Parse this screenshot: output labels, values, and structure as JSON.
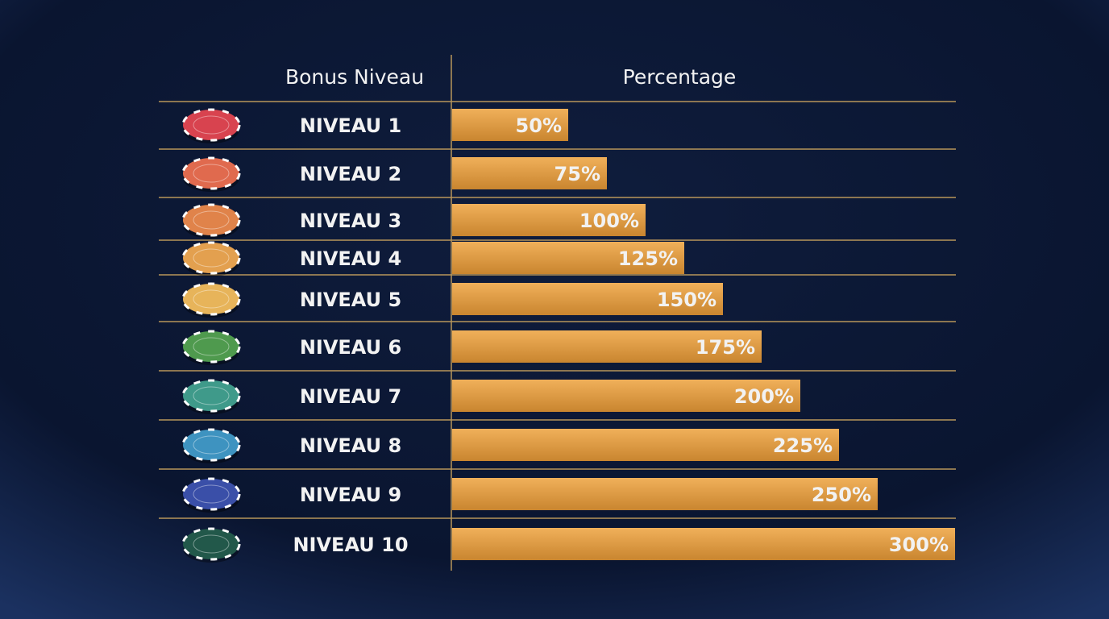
{
  "chart_data": {
    "type": "bar",
    "category_header": "Bonus Niveau",
    "value_header": "Percentage",
    "categories": [
      "NIVEAU 1",
      "NIVEAU 2",
      "NIVEAU 3",
      "NIVEAU 4",
      "NIVEAU 5",
      "NIVEAU 6",
      "NIVEAU 7",
      "NIVEAU 8",
      "NIVEAU 9",
      "NIVEAU 10"
    ],
    "values": [
      50,
      75,
      100,
      125,
      150,
      175,
      200,
      225,
      250,
      300
    ],
    "value_labels": [
      "50%",
      "75%",
      "100%",
      "125%",
      "150%",
      "175%",
      "200%",
      "225%",
      "250%",
      "300%"
    ],
    "color": "#e3a04a",
    "chip_colors": [
      "#d8434f",
      "#e06a4e",
      "#e0834a",
      "#e3a04f",
      "#e7b45a",
      "#4f9a4e",
      "#3f9a8a",
      "#3e93c0",
      "#3a4fa8",
      "#22584a",
      "#1f5040"
    ]
  }
}
